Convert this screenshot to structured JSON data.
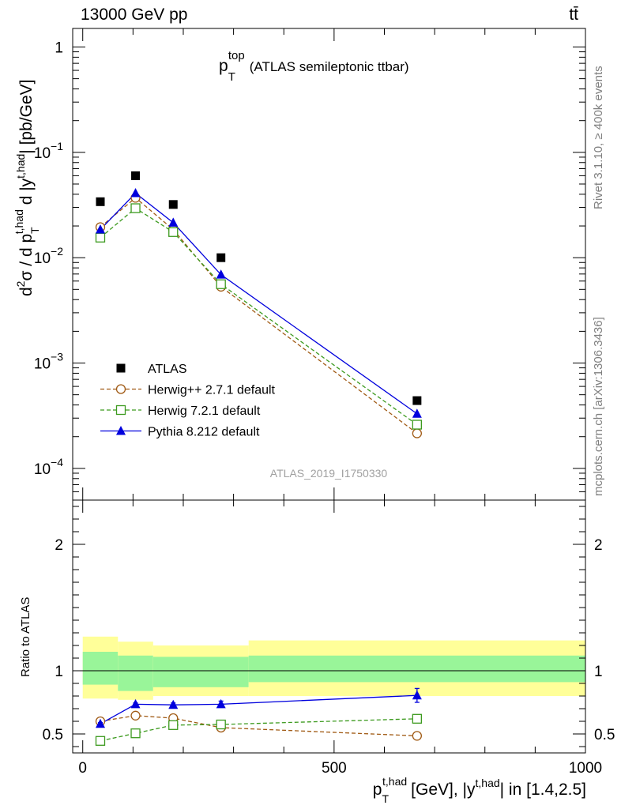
{
  "header": {
    "energy_label": "13000 GeV pp",
    "process_label": "tt̄",
    "side_rivet": "Rivet 3.1.10, ≥ 400k events",
    "side_mcplots": "mcplots.cern.ch [arXiv:1306.3436]",
    "analysis_id": "ATLAS_2019_I1750330"
  },
  "colors": {
    "atlas": "#000000",
    "herwigpp": "#a05a14",
    "herwig7": "#3c9a1e",
    "pythia": "#0000dd",
    "band_inner": "#99f599",
    "band_outer": "#ffff99"
  },
  "chart_data": [
    {
      "type": "scatter",
      "scale": "log",
      "title_main": "p",
      "title_sub": "T",
      "title_sup": "top",
      "title_rest": "(ATLAS semileptonic ttbar)",
      "ylabel": "d²σ / d p_T^{t,had} d |y^{t,had}| [pb/GeV]",
      "ylim": [
        5e-05,
        1.5
      ],
      "xlim": [
        -20,
        1000
      ],
      "y_ticks": [
        {
          "value": 1,
          "base": "1",
          "exp": ""
        },
        {
          "value": 0.1,
          "base": "10",
          "exp": "−1"
        },
        {
          "value": 0.01,
          "base": "10",
          "exp": "−2"
        },
        {
          "value": 0.001,
          "base": "10",
          "exp": "−3"
        },
        {
          "value": 0.0001,
          "base": "10",
          "exp": "−4"
        }
      ],
      "series": [
        {
          "name": "ATLAS",
          "style": "data",
          "x": [
            35,
            105,
            180,
            275,
            665
          ],
          "y": [
            0.034,
            0.06,
            0.032,
            0.01,
            0.00044
          ]
        },
        {
          "name": "Herwig++ 2.7.1 default",
          "style": "circle",
          "x": [
            35,
            105,
            180,
            275,
            665
          ],
          "y": [
            0.0195,
            0.037,
            0.0185,
            0.0053,
            0.000215
          ]
        },
        {
          "name": "Herwig 7.2.1 default",
          "style": "square",
          "x": [
            35,
            105,
            180,
            275,
            665
          ],
          "y": [
            0.0155,
            0.0295,
            0.0175,
            0.0056,
            0.00026
          ]
        },
        {
          "name": "Pythia 8.212 default",
          "style": "triangle",
          "x": [
            35,
            105,
            180,
            275,
            665
          ],
          "y": [
            0.0185,
            0.041,
            0.0215,
            0.0069,
            0.00033
          ]
        }
      ]
    },
    {
      "type": "line",
      "ylabel": "Ratio to ATLAS",
      "xlabel_main": "p",
      "xlabel_sub": "T",
      "xlabel_sup": "t,had",
      "xlabel_rest": "[GeV], |y",
      "xlabel_sup2": "t,had",
      "xlabel_tail": "| in [1.4,2.5]",
      "xlim": [
        -20,
        1000
      ],
      "ylim": [
        0.35,
        2.35
      ],
      "x_ticks": [
        "0",
        "500",
        "1000"
      ],
      "y_ticks": [
        "0.5",
        "1",
        "2"
      ],
      "bands": [
        {
          "x0": 0,
          "x1": 70,
          "inner": [
            0.89,
            1.15
          ],
          "outer": [
            0.78,
            1.27
          ]
        },
        {
          "x0": 70,
          "x1": 140,
          "inner": [
            0.84,
            1.12
          ],
          "outer": [
            0.77,
            1.23
          ]
        },
        {
          "x0": 140,
          "x1": 330,
          "inner": [
            0.87,
            1.11
          ],
          "outer": [
            0.8,
            1.2
          ]
        },
        {
          "x0": 330,
          "x1": 1000,
          "inner": [
            0.91,
            1.12
          ],
          "outer": [
            0.8,
            1.24
          ]
        }
      ],
      "series": [
        {
          "name": "Herwig++ 2.7.1 default",
          "style": "circle",
          "x": [
            35,
            105,
            180,
            275,
            665
          ],
          "y": [
            0.6,
            0.645,
            0.625,
            0.55,
            0.485
          ],
          "err": [
            0.01,
            0.01,
            0.01,
            0.01,
            0.02
          ]
        },
        {
          "name": "Herwig 7.2.1 default",
          "style": "square",
          "x": [
            35,
            105,
            180,
            275,
            665
          ],
          "y": [
            0.445,
            0.505,
            0.57,
            0.575,
            0.62
          ],
          "err": [
            0,
            0,
            0,
            0,
            0
          ]
        },
        {
          "name": "Pythia 8.212 default",
          "style": "triangle",
          "x": [
            35,
            105,
            180,
            275,
            665
          ],
          "y": [
            0.58,
            0.735,
            0.73,
            0.735,
            0.805
          ],
          "err": [
            0.01,
            0.01,
            0.015,
            0.025,
            0.055
          ]
        }
      ]
    }
  ]
}
